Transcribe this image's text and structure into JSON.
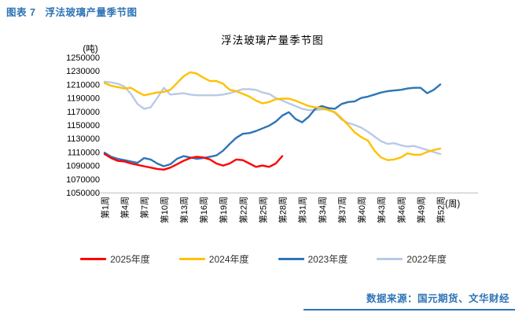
{
  "header": {
    "figure_label": "图表 7",
    "figure_title": "浮法玻璃产量季节图"
  },
  "chart": {
    "title": "浮法玻璃产量季节图",
    "y_unit": "(吨)",
    "x_unit": "(周)"
  },
  "footer": {
    "source": "数据来源：国元期货、文华财经"
  },
  "theme": {
    "accent_blue": "#2E74B5",
    "axis_line": "#C0C0C0",
    "text": "#000000"
  },
  "chart_data": {
    "type": "line",
    "title": "浮法玻璃产量季节图",
    "xlabel": "(周)",
    "ylabel": "(吨)",
    "ylim": [
      1050000,
      1250000
    ],
    "y_ticks": [
      1250000,
      1230000,
      1210000,
      1190000,
      1170000,
      1150000,
      1130000,
      1110000,
      1090000,
      1070000,
      1050000
    ],
    "x_tick_weeks": [
      1,
      4,
      7,
      10,
      13,
      16,
      19,
      22,
      25,
      28,
      31,
      34,
      37,
      40,
      43,
      46,
      49,
      52
    ],
    "x_tick_labels": [
      "第1周",
      "第4周",
      "第7周",
      "第10周",
      "第13周",
      "第16周",
      "第19周",
      "第22周",
      "第25周",
      "第28周",
      "第31周",
      "第34周",
      "第37周",
      "第40周",
      "第43周",
      "第46周",
      "第49周",
      "第52周"
    ],
    "weeks_total": 52,
    "grid": false,
    "legend_position": "bottom",
    "series": [
      {
        "name": "2025年度",
        "color": "#FF0000",
        "values": [
          1107000,
          1101000,
          1097000,
          1096000,
          1093000,
          1091000,
          1089000,
          1087000,
          1085000,
          1084000,
          1087000,
          1092000,
          1097000,
          1101000,
          1103000,
          1102000,
          1099000,
          1093000,
          1090000,
          1093000,
          1099000,
          1098000,
          1093000,
          1088000,
          1090000,
          1088000,
          1093000,
          1104000
        ]
      },
      {
        "name": "2024年度",
        "color": "#FFC000",
        "values": [
          1212000,
          1208000,
          1206000,
          1204000,
          1205000,
          1199000,
          1194000,
          1196000,
          1198000,
          1199000,
          1202000,
          1212000,
          1222000,
          1228000,
          1226000,
          1220000,
          1215000,
          1215000,
          1211000,
          1202000,
          1200000,
          1196000,
          1192000,
          1186000,
          1182000,
          1184000,
          1188000,
          1189000,
          1189000,
          1186000,
          1182000,
          1178000,
          1176000,
          1175000,
          1172000,
          1169000,
          1160000,
          1150000,
          1139000,
          1132000,
          1127000,
          1112000,
          1102000,
          1098000,
          1099000,
          1102000,
          1108000,
          1106000,
          1106000,
          1110000,
          1113000,
          1115000
        ]
      },
      {
        "name": "2023年度",
        "color": "#2E75B6",
        "values": [
          1109000,
          1103000,
          1100000,
          1098000,
          1096000,
          1094000,
          1101000,
          1099000,
          1093000,
          1089000,
          1092000,
          1100000,
          1104000,
          1102000,
          1100000,
          1101000,
          1103000,
          1105000,
          1112000,
          1122000,
          1131000,
          1137000,
          1138000,
          1141000,
          1145000,
          1149000,
          1155000,
          1164000,
          1169000,
          1159000,
          1154000,
          1162000,
          1174000,
          1178000,
          1175000,
          1174000,
          1181000,
          1184000,
          1185000,
          1190000,
          1192000,
          1195000,
          1198000,
          1200000,
          1201000,
          1202000,
          1204000,
          1205000,
          1205000,
          1197000,
          1202000,
          1210000
        ]
      },
      {
        "name": "2022年度",
        "color": "#B9C9E8",
        "values": [
          1214000,
          1213000,
          1211000,
          1207000,
          1196000,
          1181000,
          1174000,
          1176000,
          1190000,
          1205000,
          1195000,
          1196000,
          1197000,
          1195000,
          1194000,
          1194000,
          1194000,
          1194000,
          1195000,
          1197000,
          1200000,
          1203000,
          1203000,
          1202000,
          1198000,
          1196000,
          1190000,
          1186000,
          1182000,
          1178000,
          1174000,
          1172000,
          1172000,
          1173000,
          1173000,
          1168000,
          1158000,
          1153000,
          1150000,
          1146000,
          1140000,
          1133000,
          1126000,
          1122000,
          1123000,
          1120000,
          1118000,
          1119000,
          1116000,
          1113000,
          1110000,
          1107000
        ]
      }
    ]
  }
}
